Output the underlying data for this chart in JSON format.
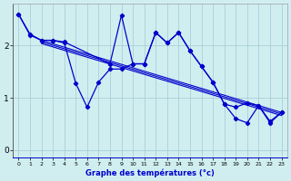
{
  "title": "",
  "xlabel": "Graphe des températures (°c)",
  "ylabel": "",
  "background_color": "#d0eef0",
  "grid_color": "#a8d0d8",
  "line_color": "#0000cc",
  "xlim": [
    -0.5,
    23.5
  ],
  "ylim": [
    -0.15,
    2.8
  ],
  "xticks": [
    0,
    1,
    2,
    3,
    4,
    5,
    6,
    7,
    8,
    9,
    10,
    11,
    12,
    13,
    14,
    15,
    16,
    17,
    18,
    19,
    20,
    21,
    22,
    23
  ],
  "yticks": [
    0,
    1,
    2
  ],
  "series1_x": [
    0,
    1,
    2,
    3,
    4,
    5,
    6,
    7,
    8,
    9,
    10,
    11,
    12,
    13,
    14,
    15,
    16,
    17,
    18,
    19,
    20,
    21,
    22,
    23
  ],
  "series1_y": [
    2.6,
    2.2,
    2.1,
    2.1,
    2.05,
    1.28,
    0.82,
    1.3,
    1.55,
    1.55,
    1.65,
    1.65,
    2.25,
    2.05,
    2.25,
    1.9,
    1.6,
    1.3,
    0.88,
    0.82,
    0.9,
    0.85,
    0.55,
    0.72
  ],
  "series2_x": [
    0,
    1,
    2,
    3,
    4,
    8,
    9,
    10,
    11,
    12,
    13,
    14,
    15,
    16,
    17,
    18,
    19,
    20,
    21,
    22,
    23
  ],
  "series2_y": [
    2.6,
    2.22,
    2.1,
    2.1,
    2.07,
    1.65,
    2.58,
    1.65,
    1.65,
    2.25,
    2.05,
    2.25,
    1.9,
    1.6,
    1.3,
    0.88,
    0.6,
    0.52,
    0.85,
    0.52,
    0.72
  ],
  "trend_lines": [
    {
      "x": [
        2,
        23
      ],
      "y": [
        2.1,
        0.72
      ]
    },
    {
      "x": [
        2,
        23
      ],
      "y": [
        2.07,
        0.69
      ]
    },
    {
      "x": [
        2,
        23
      ],
      "y": [
        2.04,
        0.66
      ]
    }
  ]
}
